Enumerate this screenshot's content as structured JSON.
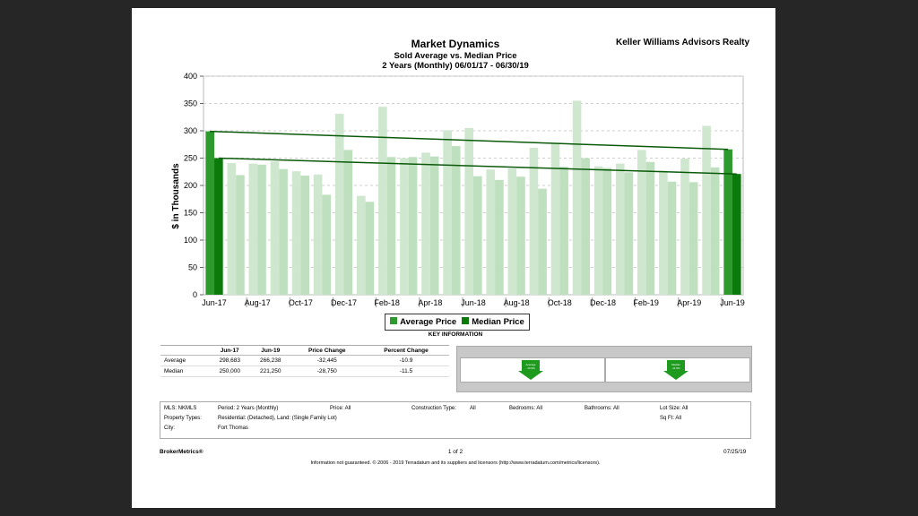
{
  "report": {
    "title": "Market Dynamics",
    "subtitle": "Sold Average vs. Median Price",
    "period": "2 Years (Monthly) 06/01/17 - 06/30/19",
    "company": "Keller Williams Advisors Realty"
  },
  "chart_data": {
    "type": "bar",
    "title": "Market Dynamics",
    "ylabel": "$ in Thousands",
    "ylim": [
      0,
      400
    ],
    "yticks": [
      "0",
      "50",
      "100",
      "150",
      "200",
      "250",
      "300",
      "350",
      "400"
    ],
    "xtick_labels": [
      "Jun-17",
      "Aug-17",
      "Oct-17",
      "Dec-17",
      "Feb-18",
      "Apr-18",
      "Jun-18",
      "Aug-18",
      "Oct-18",
      "Dec-18",
      "Feb-19",
      "Apr-19",
      "Jun-19"
    ],
    "categories": [
      "Jun-17",
      "Jul-17",
      "Aug-17",
      "Sep-17",
      "Oct-17",
      "Nov-17",
      "Dec-17",
      "Jan-18",
      "Feb-18",
      "Mar-18",
      "Apr-18",
      "May-18",
      "Jun-18",
      "Jul-18",
      "Aug-18",
      "Sep-18",
      "Oct-18",
      "Nov-18",
      "Dec-18",
      "Jan-19",
      "Feb-19",
      "Mar-19",
      "Apr-19",
      "May-19",
      "Jun-19"
    ],
    "series": [
      {
        "name": "Average Price",
        "color": "#2e9a2e",
        "values": [
          299,
          241,
          240,
          244,
          226,
          220,
          331,
          181,
          344,
          250,
          260,
          301,
          305,
          229,
          231,
          269,
          278,
          355,
          235,
          240,
          265,
          227,
          249,
          309,
          266
        ]
      },
      {
        "name": "Median Price",
        "color": "#0a7a0a",
        "values": [
          250,
          219,
          238,
          230,
          218,
          183,
          265,
          170,
          252,
          252,
          253,
          272,
          217,
          210,
          216,
          194,
          234,
          250,
          232,
          224,
          243,
          207,
          206,
          233,
          221
        ]
      }
    ],
    "trendlines": [
      {
        "series": "Average Price",
        "start": 299,
        "end": 266
      },
      {
        "series": "Median Price",
        "start": 250,
        "end": 221
      }
    ],
    "legend": "bottom-center",
    "grid": true
  },
  "legend": {
    "items": [
      "Average Price",
      "Median Price"
    ],
    "key_label": "KEY INFORMATION"
  },
  "stats": {
    "headers": [
      "",
      "Jun-17",
      "Jun-19",
      "Price Change",
      "Percent Change"
    ],
    "rows": [
      [
        "Average",
        "298,683",
        "266,238",
        "-32,445",
        "-10.9"
      ],
      [
        "Median",
        "250,000",
        "221,250",
        "-28,750",
        "-11.5"
      ]
    ]
  },
  "indicators": [
    {
      "label": "Average",
      "value": "-10.9%"
    },
    {
      "label": "Median",
      "value": "-11.5%"
    }
  ],
  "filters": {
    "mls": "MLS:  NKMLS",
    "period": "Period:    2 Years (Monthly)",
    "price": "Price:   All",
    "construction": "Construction Type:",
    "construction_val": "All",
    "bedrooms": "Bedrooms:   All",
    "bathrooms": "Bathrooms:   All",
    "lot_size": "Lot Size:   All",
    "sqft": "Sq Ft:      All",
    "property_types_label": "Property Types:",
    "property_types_val": "Residential: (Detached), Land: (Single Family Lot)",
    "city_label": "City:",
    "city_val": "Fort Thomas"
  },
  "footer": {
    "brand": "BrokerMetrics®",
    "page": "1 of 2",
    "date": "07/25/19",
    "disclaimer": "Information not guaranteed.  © 2006 - 2019 Terradatum and its suppliers and licensors (http://www.terradatum.com/metrics/licensors)."
  }
}
